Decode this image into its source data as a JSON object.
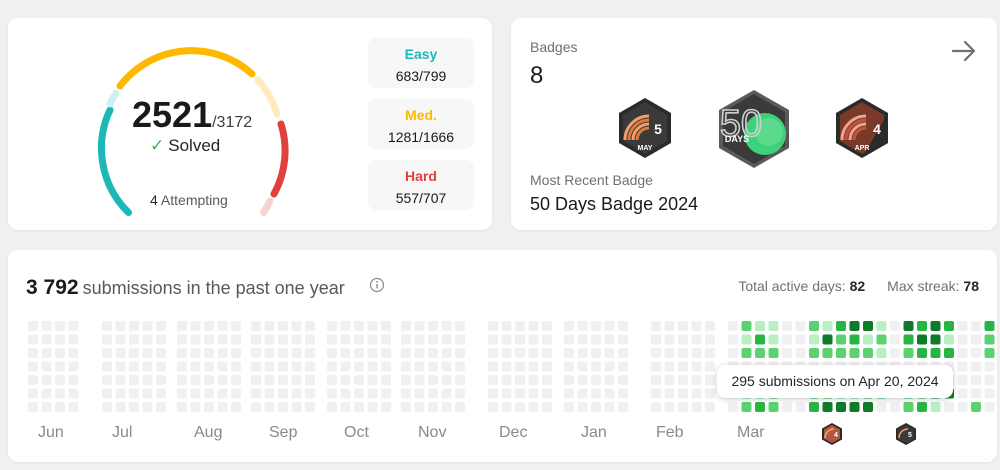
{
  "solved": {
    "count": "2521",
    "total": "/3172",
    "label": "Solved",
    "attempting_count": "4",
    "attempting_label": "Attempting",
    "difficulties": [
      {
        "name": "Easy",
        "value": "683/799",
        "color": "#1cb8b8"
      },
      {
        "name": "Med.",
        "value": "1281/1666",
        "color": "#ffb800"
      },
      {
        "name": "Hard",
        "value": "557/707",
        "color": "#e0413f"
      }
    ]
  },
  "badges": {
    "title": "Badges",
    "count": "8",
    "items": [
      {
        "icon": "may-streak-badge-icon",
        "number": "5",
        "label": "MAY"
      },
      {
        "icon": "50-days-badge-icon",
        "number": "50",
        "label": "DAYS"
      },
      {
        "icon": "apr-streak-badge-icon",
        "number": "4",
        "label": "APR"
      }
    ],
    "recent_label": "Most Recent Badge",
    "recent_name": "50 Days Badge 2024"
  },
  "heatmap": {
    "count": "3 792",
    "title_text": "submissions in the past one year",
    "active_days_label": "Total active days:",
    "active_days": "82",
    "max_streak_label": "Max streak:",
    "max_streak": "78",
    "months": [
      "Jun",
      "Jul",
      "Aug",
      "Sep",
      "Oct",
      "Nov",
      "Dec",
      "Jan",
      "Feb",
      "Mar"
    ],
    "tooltip": "295 submissions on Apr 20, 2024",
    "colors": {
      "empty": "#f0f0f2",
      "level1": "#b9efc2",
      "level2": "#5bd26f",
      "level3": "#28b443",
      "level4": "#0e7a2a"
    },
    "mini_badges": [
      {
        "icon": "apr-mini-badge-icon",
        "number": "4"
      },
      {
        "icon": "may-mini-badge-icon",
        "number": "5"
      }
    ]
  }
}
